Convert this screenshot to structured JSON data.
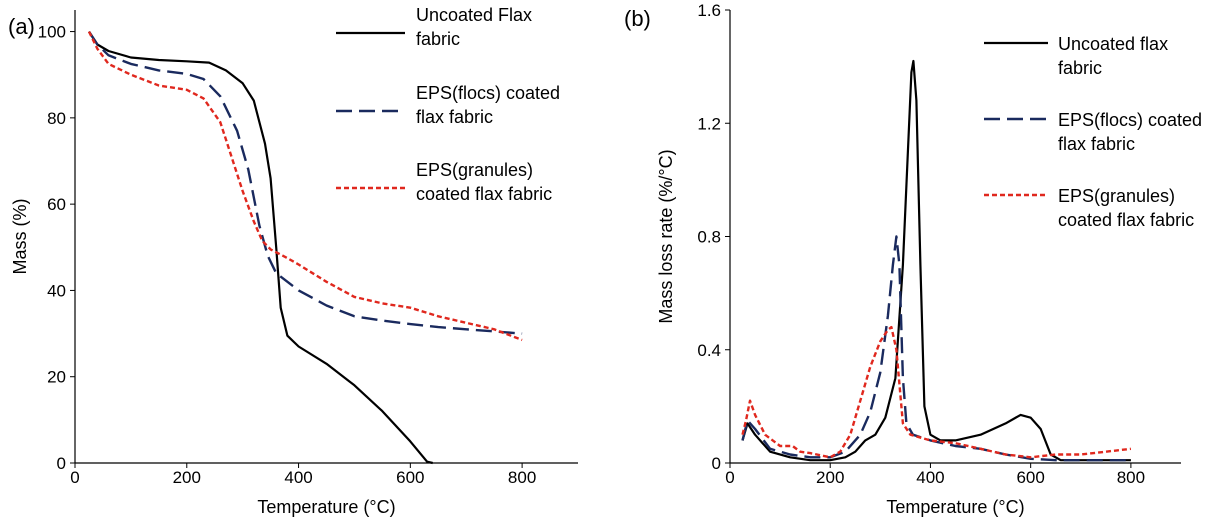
{
  "chart_data": [
    {
      "type": "line",
      "panel_label": "(a)",
      "xlabel": "Temperature (°C)",
      "ylabel": "Mass (%)",
      "xlim": [
        0,
        900
      ],
      "ylim": [
        0,
        105
      ],
      "xticks": [
        0,
        200,
        400,
        600,
        800
      ],
      "yticks": [
        0,
        20,
        40,
        60,
        80,
        100
      ],
      "grid": false,
      "legend_position": "top-right",
      "series": [
        {
          "name_lines": [
            "Uncoated Flax",
            "fabric"
          ],
          "color": "#000000",
          "style": "solid",
          "points": [
            [
              25,
              100
            ],
            [
              40,
              97
            ],
            [
              60,
              95.5
            ],
            [
              100,
              94
            ],
            [
              150,
              93.4
            ],
            [
              200,
              93.1
            ],
            [
              240,
              92.8
            ],
            [
              270,
              91
            ],
            [
              300,
              88
            ],
            [
              320,
              84
            ],
            [
              340,
              74
            ],
            [
              350,
              66
            ],
            [
              360,
              50
            ],
            [
              368,
              36
            ],
            [
              380,
              29.5
            ],
            [
              400,
              27
            ],
            [
              450,
              23
            ],
            [
              500,
              18
            ],
            [
              550,
              12
            ],
            [
              600,
              5
            ],
            [
              630,
              0.3
            ],
            [
              640,
              0
            ]
          ]
        },
        {
          "name_lines": [
            "EPS(flocs) coated",
            "flax fabric"
          ],
          "color": "#1a2a5e",
          "style": "dashed",
          "points": [
            [
              25,
              100
            ],
            [
              40,
              97
            ],
            [
              60,
              94.5
            ],
            [
              100,
              92.5
            ],
            [
              150,
              91
            ],
            [
              200,
              90.2
            ],
            [
              230,
              89
            ],
            [
              260,
              85
            ],
            [
              290,
              77
            ],
            [
              310,
              68
            ],
            [
              330,
              55
            ],
            [
              345,
              48
            ],
            [
              360,
              44
            ],
            [
              400,
              40
            ],
            [
              450,
              36.5
            ],
            [
              500,
              34
            ],
            [
              550,
              33
            ],
            [
              600,
              32.2
            ],
            [
              650,
              31.5
            ],
            [
              700,
              31
            ],
            [
              750,
              30.5
            ],
            [
              800,
              30
            ]
          ]
        },
        {
          "name_lines": [
            "EPS(granules)",
            "coated flax fabric"
          ],
          "color": "#e0281e",
          "style": "dotted",
          "points": [
            [
              25,
              100
            ],
            [
              40,
              96
            ],
            [
              60,
              92.5
            ],
            [
              100,
              90
            ],
            [
              150,
              87.5
            ],
            [
              200,
              86.5
            ],
            [
              230,
              84.5
            ],
            [
              260,
              79
            ],
            [
              280,
              71
            ],
            [
              300,
              63
            ],
            [
              320,
              56
            ],
            [
              335,
              51.5
            ],
            [
              350,
              49.5
            ],
            [
              380,
              47.5
            ],
            [
              400,
              46
            ],
            [
              450,
              42
            ],
            [
              500,
              38.5
            ],
            [
              550,
              37
            ],
            [
              600,
              36
            ],
            [
              650,
              34
            ],
            [
              700,
              32.5
            ],
            [
              750,
              31
            ],
            [
              800,
              28.5
            ]
          ]
        }
      ]
    },
    {
      "type": "line",
      "panel_label": "(b)",
      "xlabel": "Temperature (°C)",
      "ylabel": "Mass loss rate (%/°C)",
      "xlim": [
        0,
        900
      ],
      "ylim": [
        0,
        1.6
      ],
      "xticks": [
        0,
        200,
        400,
        600,
        800
      ],
      "yticks": [
        0,
        0.4,
        0.8,
        1.2,
        1.6
      ],
      "ytick_labels": [
        "0",
        "0.4",
        "0.8",
        "1.2",
        "1.6"
      ],
      "grid": false,
      "legend_position": "top-right",
      "series": [
        {
          "name_lines": [
            "Uncoated flax",
            "fabric"
          ],
          "color": "#000000",
          "style": "solid",
          "points": [
            [
              25,
              0.08
            ],
            [
              35,
              0.14
            ],
            [
              50,
              0.1
            ],
            [
              80,
              0.04
            ],
            [
              120,
              0.02
            ],
            [
              160,
              0.01
            ],
            [
              200,
              0.01
            ],
            [
              230,
              0.02
            ],
            [
              250,
              0.04
            ],
            [
              270,
              0.08
            ],
            [
              290,
              0.1
            ],
            [
              310,
              0.16
            ],
            [
              330,
              0.3
            ],
            [
              345,
              0.7
            ],
            [
              355,
              1.1
            ],
            [
              362,
              1.38
            ],
            [
              366,
              1.42
            ],
            [
              372,
              1.28
            ],
            [
              380,
              0.7
            ],
            [
              388,
              0.2
            ],
            [
              400,
              0.1
            ],
            [
              420,
              0.08
            ],
            [
              450,
              0.08
            ],
            [
              500,
              0.1
            ],
            [
              550,
              0.14
            ],
            [
              580,
              0.17
            ],
            [
              600,
              0.16
            ],
            [
              620,
              0.12
            ],
            [
              640,
              0.03
            ],
            [
              660,
              0.01
            ],
            [
              700,
              0.01
            ],
            [
              750,
              0.01
            ],
            [
              800,
              0.01
            ]
          ]
        },
        {
          "name_lines": [
            "EPS(flocs) coated",
            "flax fabric"
          ],
          "color": "#1a2a5e",
          "style": "dashed",
          "points": [
            [
              25,
              0.08
            ],
            [
              35,
              0.15
            ],
            [
              50,
              0.12
            ],
            [
              80,
              0.05
            ],
            [
              120,
              0.03
            ],
            [
              160,
              0.02
            ],
            [
              200,
              0.02
            ],
            [
              230,
              0.04
            ],
            [
              260,
              0.1
            ],
            [
              280,
              0.18
            ],
            [
              300,
              0.32
            ],
            [
              315,
              0.52
            ],
            [
              325,
              0.7
            ],
            [
              332,
              0.8
            ],
            [
              338,
              0.7
            ],
            [
              345,
              0.3
            ],
            [
              352,
              0.14
            ],
            [
              365,
              0.1
            ],
            [
              400,
              0.08
            ],
            [
              450,
              0.06
            ],
            [
              500,
              0.05
            ],
            [
              550,
              0.03
            ],
            [
              600,
              0.015
            ],
            [
              650,
              0.01
            ],
            [
              700,
              0.01
            ],
            [
              750,
              0.01
            ],
            [
              800,
              0.01
            ]
          ]
        },
        {
          "name_lines": [
            "EPS(granules)",
            "coated flax fabric"
          ],
          "color": "#e0281e",
          "style": "dotted",
          "points": [
            [
              25,
              0.1
            ],
            [
              32,
              0.15
            ],
            [
              40,
              0.22
            ],
            [
              50,
              0.17
            ],
            [
              70,
              0.1
            ],
            [
              100,
              0.06
            ],
            [
              125,
              0.06
            ],
            [
              140,
              0.04
            ],
            [
              160,
              0.035
            ],
            [
              200,
              0.02
            ],
            [
              220,
              0.04
            ],
            [
              240,
              0.1
            ],
            [
              260,
              0.22
            ],
            [
              280,
              0.34
            ],
            [
              300,
              0.43
            ],
            [
              315,
              0.47
            ],
            [
              322,
              0.48
            ],
            [
              332,
              0.4
            ],
            [
              345,
              0.14
            ],
            [
              360,
              0.1
            ],
            [
              400,
              0.08
            ],
            [
              450,
              0.07
            ],
            [
              500,
              0.05
            ],
            [
              550,
              0.03
            ],
            [
              600,
              0.02
            ],
            [
              650,
              0.03
            ],
            [
              700,
              0.03
            ],
            [
              750,
              0.04
            ],
            [
              800,
              0.05
            ]
          ]
        }
      ]
    }
  ]
}
